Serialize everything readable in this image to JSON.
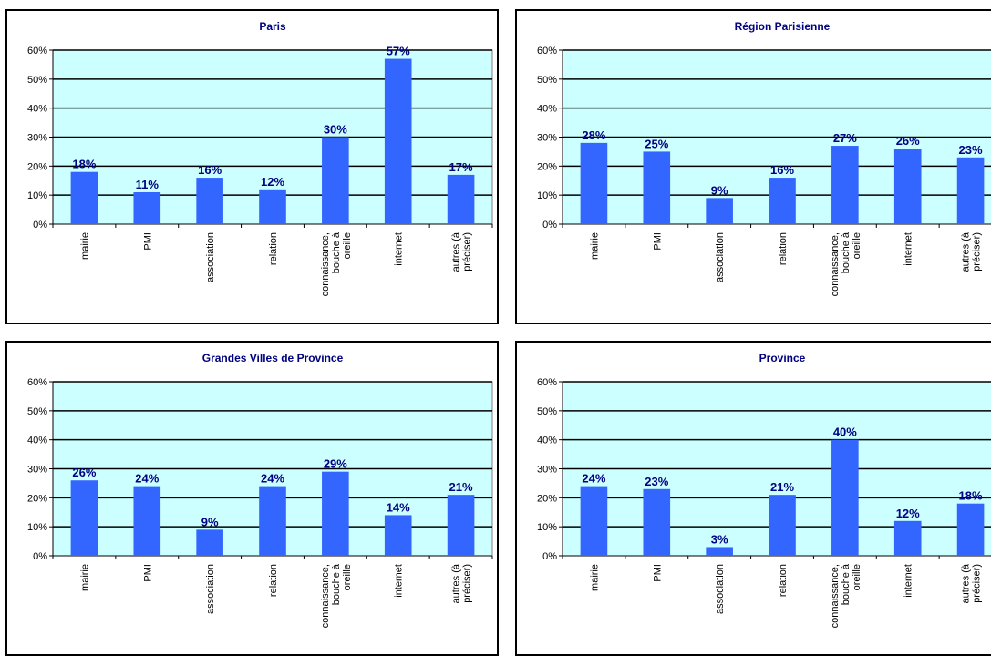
{
  "colors": {
    "bar": "#3366FF",
    "plot_bg": "#CCFFFF",
    "label": "#000080",
    "grid": "#000000"
  },
  "chart_data": [
    {
      "type": "bar",
      "title": "Paris",
      "categories": [
        [
          "mairie"
        ],
        [
          "PMI"
        ],
        [
          "association"
        ],
        [
          "relation"
        ],
        [
          "connaissance,",
          "bouche à",
          "oreille"
        ],
        [
          "internet"
        ],
        [
          "autres (à",
          "préciser)"
        ]
      ],
      "values": [
        18,
        11,
        16,
        12,
        30,
        57,
        17
      ],
      "value_labels": [
        "18%",
        "11%",
        "16%",
        "12%",
        "30%",
        "57%",
        "17%"
      ],
      "ylim": [
        0,
        60
      ],
      "yticks": [
        "0%",
        "10%",
        "20%",
        "30%",
        "40%",
        "50%",
        "60%"
      ],
      "grid": true
    },
    {
      "type": "bar",
      "title": "Région Parisienne",
      "categories": [
        [
          "mairie"
        ],
        [
          "PMI"
        ],
        [
          "association"
        ],
        [
          "relation"
        ],
        [
          "connaissance,",
          "bouche à",
          "oreille"
        ],
        [
          "internet"
        ],
        [
          "autres (à",
          "préciser)"
        ]
      ],
      "values": [
        28,
        25,
        9,
        16,
        27,
        26,
        23
      ],
      "value_labels": [
        "28%",
        "25%",
        "9%",
        "16%",
        "27%",
        "26%",
        "23%"
      ],
      "ylim": [
        0,
        60
      ],
      "yticks": [
        "0%",
        "10%",
        "20%",
        "30%",
        "40%",
        "50%",
        "60%"
      ],
      "grid": true
    },
    {
      "type": "bar",
      "title": "Grandes Villes de Province",
      "categories": [
        [
          "mairie"
        ],
        [
          "PMI"
        ],
        [
          "association"
        ],
        [
          "relation"
        ],
        [
          "connaissance,",
          "bouche à",
          "oreille"
        ],
        [
          "internet"
        ],
        [
          "autres (à",
          "préciser)"
        ]
      ],
      "values": [
        26,
        24,
        9,
        24,
        29,
        14,
        21
      ],
      "value_labels": [
        "26%",
        "24%",
        "9%",
        "24%",
        "29%",
        "14%",
        "21%"
      ],
      "ylim": [
        0,
        60
      ],
      "yticks": [
        "0%",
        "10%",
        "20%",
        "30%",
        "40%",
        "50%",
        "60%"
      ],
      "grid": true
    },
    {
      "type": "bar",
      "title": "Province",
      "categories": [
        [
          "mairie"
        ],
        [
          "PMI"
        ],
        [
          "association"
        ],
        [
          "relation"
        ],
        [
          "connaissance,",
          "bouche à",
          "oreille"
        ],
        [
          "internet"
        ],
        [
          "autres (à",
          "préciser)"
        ]
      ],
      "values": [
        24,
        23,
        3,
        21,
        40,
        12,
        18
      ],
      "value_labels": [
        "24%",
        "23%",
        "3%",
        "21%",
        "40%",
        "12%",
        "18%"
      ],
      "ylim": [
        0,
        60
      ],
      "yticks": [
        "0%",
        "10%",
        "20%",
        "30%",
        "40%",
        "50%",
        "60%"
      ],
      "grid": true
    }
  ]
}
